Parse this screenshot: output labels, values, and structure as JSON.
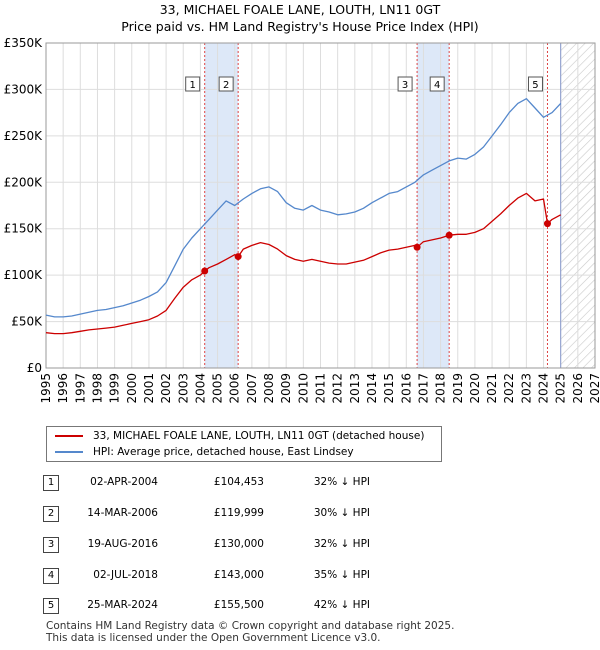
{
  "title_line1": "33, MICHAEL FOALE LANE, LOUTH, LN11 0GT",
  "title_line2": "Price paid vs. HM Land Registry's House Price Index (HPI)",
  "legend": {
    "property": "33, MICHAEL FOALE LANE, LOUTH, LN11 0GT (detached house)",
    "hpi": "HPI: Average price, detached house, East Lindsey"
  },
  "sales": [
    {
      "num": "1",
      "date": "02-APR-2004",
      "price": "£104,453",
      "hpi": "32% ↓ HPI"
    },
    {
      "num": "2",
      "date": "14-MAR-2006",
      "price": "£119,999",
      "hpi": "30% ↓ HPI"
    },
    {
      "num": "3",
      "date": "19-AUG-2016",
      "price": "£130,000",
      "hpi": "32% ↓ HPI"
    },
    {
      "num": "4",
      "date": "02-JUL-2018",
      "price": "£143,000",
      "hpi": "35% ↓ HPI"
    },
    {
      "num": "5",
      "date": "25-MAR-2024",
      "price": "£155,500",
      "hpi": "42% ↓ HPI"
    }
  ],
  "footer_line1": "Contains HM Land Registry data © Crown copyright and database right 2025.",
  "footer_line2": "This data is licensed under the Open Government Licence v3.0.",
  "colors": {
    "property": "#cc0000",
    "hpi": "#5588cc",
    "shade": "#dde8f8",
    "grid": "#dddddd"
  },
  "chart_data": {
    "type": "line",
    "xlabel": "",
    "ylabel": "",
    "xlim": [
      1995,
      2027
    ],
    "ylim": [
      0,
      350000
    ],
    "yticks": [
      0,
      50000,
      100000,
      150000,
      200000,
      250000,
      300000,
      350000
    ],
    "ytick_labels": [
      "£0",
      "£50K",
      "£100K",
      "£150K",
      "£200K",
      "£250K",
      "£300K",
      "£350K"
    ],
    "xticks": [
      1995,
      1996,
      1997,
      1998,
      1999,
      2000,
      2001,
      2002,
      2003,
      2004,
      2005,
      2006,
      2007,
      2008,
      2009,
      2010,
      2011,
      2012,
      2013,
      2014,
      2015,
      2016,
      2017,
      2018,
      2019,
      2020,
      2021,
      2022,
      2023,
      2024,
      2025,
      2026,
      2027
    ],
    "data_end": 2025.0,
    "shaded_periods": [
      [
        2004.25,
        2006.2
      ],
      [
        2016.63,
        2018.5
      ]
    ],
    "sale_markers": [
      {
        "label": "1",
        "x": 2004.25,
        "y": 104453
      },
      {
        "label": "2",
        "x": 2006.2,
        "y": 119999
      },
      {
        "label": "3",
        "x": 2016.63,
        "y": 130000
      },
      {
        "label": "4",
        "x": 2018.5,
        "y": 143000
      },
      {
        "label": "5",
        "x": 2024.23,
        "y": 155500
      }
    ],
    "series": [
      {
        "name": "HPI: Average price, detached house, East Lindsey",
        "x": [
          1995.0,
          1995.5,
          1996.0,
          1996.5,
          1997.0,
          1997.5,
          1998.0,
          1998.5,
          1999.0,
          1999.5,
          2000.0,
          2000.5,
          2001.0,
          2001.5,
          2002.0,
          2002.5,
          2003.0,
          2003.5,
          2004.0,
          2004.5,
          2005.0,
          2005.5,
          2006.0,
          2006.5,
          2007.0,
          2007.5,
          2008.0,
          2008.5,
          2009.0,
          2009.5,
          2010.0,
          2010.5,
          2011.0,
          2011.5,
          2012.0,
          2012.5,
          2013.0,
          2013.5,
          2014.0,
          2014.5,
          2015.0,
          2015.5,
          2016.0,
          2016.5,
          2017.0,
          2017.5,
          2018.0,
          2018.5,
          2019.0,
          2019.5,
          2020.0,
          2020.5,
          2021.0,
          2021.5,
          2022.0,
          2022.5,
          2023.0,
          2023.5,
          2024.0,
          2024.5,
          2025.0
        ],
        "values": [
          57000,
          55000,
          55000,
          56000,
          58000,
          60000,
          62000,
          63000,
          65000,
          67000,
          70000,
          73000,
          77000,
          82000,
          92000,
          110000,
          128000,
          140000,
          150000,
          160000,
          170000,
          180000,
          175000,
          182000,
          188000,
          193000,
          195000,
          190000,
          178000,
          172000,
          170000,
          175000,
          170000,
          168000,
          165000,
          166000,
          168000,
          172000,
          178000,
          183000,
          188000,
          190000,
          195000,
          200000,
          208000,
          213000,
          218000,
          223000,
          226000,
          225000,
          230000,
          238000,
          250000,
          262000,
          275000,
          285000,
          290000,
          280000,
          270000,
          275000,
          285000
        ]
      },
      {
        "name": "33, MICHAEL FOALE LANE, LOUTH, LN11 0GT (detached house)",
        "x": [
          1995.0,
          1995.5,
          1996.0,
          1996.5,
          1997.0,
          1997.5,
          1998.0,
          1998.5,
          1999.0,
          1999.5,
          2000.0,
          2000.5,
          2001.0,
          2001.5,
          2002.0,
          2002.5,
          2003.0,
          2003.5,
          2004.0,
          2004.25,
          2004.5,
          2005.0,
          2005.5,
          2006.0,
          2006.2,
          2006.5,
          2007.0,
          2007.5,
          2008.0,
          2008.5,
          2009.0,
          2009.5,
          2010.0,
          2010.5,
          2011.0,
          2011.5,
          2012.0,
          2012.5,
          2013.0,
          2013.5,
          2014.0,
          2014.5,
          2015.0,
          2015.5,
          2016.0,
          2016.5,
          2016.63,
          2017.0,
          2017.5,
          2018.0,
          2018.5,
          2019.0,
          2019.5,
          2020.0,
          2020.5,
          2021.0,
          2021.5,
          2022.0,
          2022.5,
          2023.0,
          2023.5,
          2024.0,
          2024.23,
          2024.5,
          2025.0
        ],
        "values": [
          38000,
          37000,
          37000,
          38000,
          39500,
          41000,
          42000,
          43000,
          44000,
          46000,
          48000,
          50000,
          52000,
          56000,
          62000,
          75000,
          87000,
          95000,
          100000,
          104453,
          108000,
          112000,
          117000,
          122000,
          119999,
          128000,
          132000,
          135000,
          133000,
          128000,
          121000,
          117000,
          115000,
          117000,
          115000,
          113000,
          112000,
          112000,
          114000,
          116000,
          120000,
          124000,
          127000,
          128000,
          130000,
          132000,
          130000,
          136000,
          138000,
          140000,
          143000,
          144000,
          144000,
          146000,
          150000,
          158000,
          166000,
          175000,
          183000,
          188000,
          180000,
          182000,
          155500,
          160000,
          165000
        ]
      }
    ]
  }
}
